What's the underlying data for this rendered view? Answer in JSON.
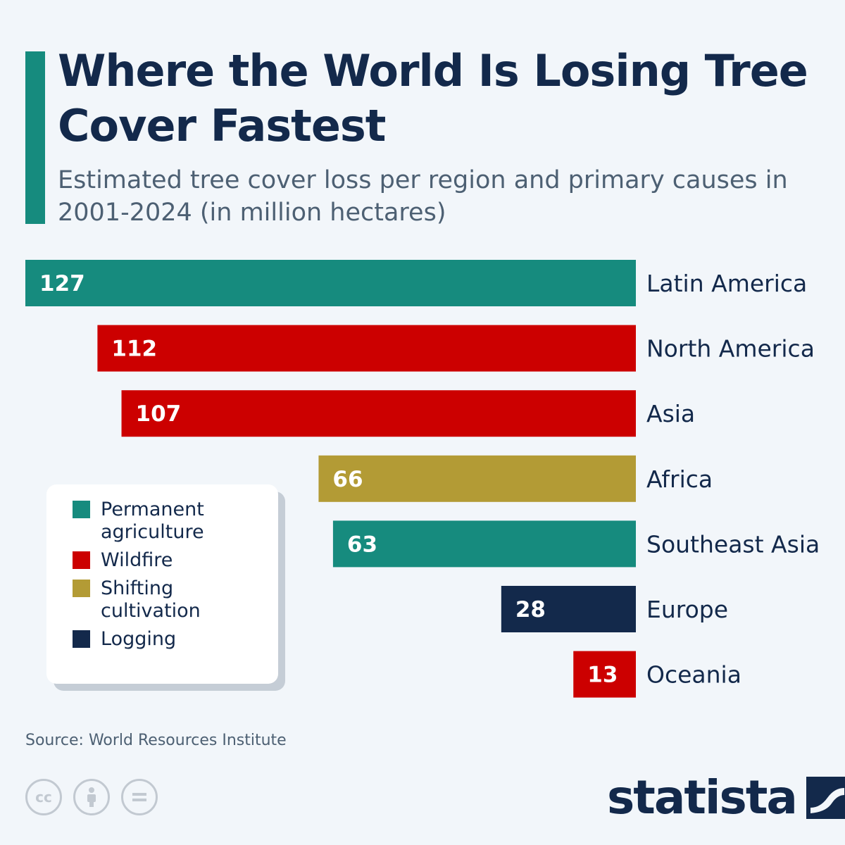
{
  "title": "Where the World Is Losing Tree Cover Fastest",
  "subtitle": "Estimated tree cover loss per region and primary causes in 2001-2024 (in million hectares)",
  "colors": {
    "permanent_agriculture": "#168b7e",
    "wildfire": "#cc0000",
    "shifting_cultivation": "#b39b35",
    "logging": "#13294b"
  },
  "legend": [
    {
      "label": "Permanent agriculture",
      "color_key": "permanent_agriculture"
    },
    {
      "label": "Wildfire",
      "color_key": "wildfire"
    },
    {
      "label": "Shifting cultivation",
      "color_key": "shifting_cultivation"
    },
    {
      "label": "Logging",
      "color_key": "logging"
    }
  ],
  "chart_data": {
    "type": "bar",
    "orientation": "horizontal",
    "categories": [
      "Latin America",
      "North America",
      "Asia",
      "Africa",
      "Southeast Asia",
      "Europe",
      "Oceania"
    ],
    "values": [
      127,
      112,
      107,
      66,
      63,
      28,
      13
    ],
    "causes": [
      "Permanent agriculture",
      "Wildfire",
      "Wildfire",
      "Shifting cultivation",
      "Permanent agriculture",
      "Logging",
      "Wildfire"
    ],
    "unit": "million hectares",
    "xlim": [
      0,
      127
    ],
    "grid": false,
    "legend_position": "bottom-left"
  },
  "source": "Source: World Resources Institute",
  "icons": [
    "cc-icon",
    "by-attribution-icon",
    "no-derivatives-icon"
  ],
  "brand": "statista"
}
